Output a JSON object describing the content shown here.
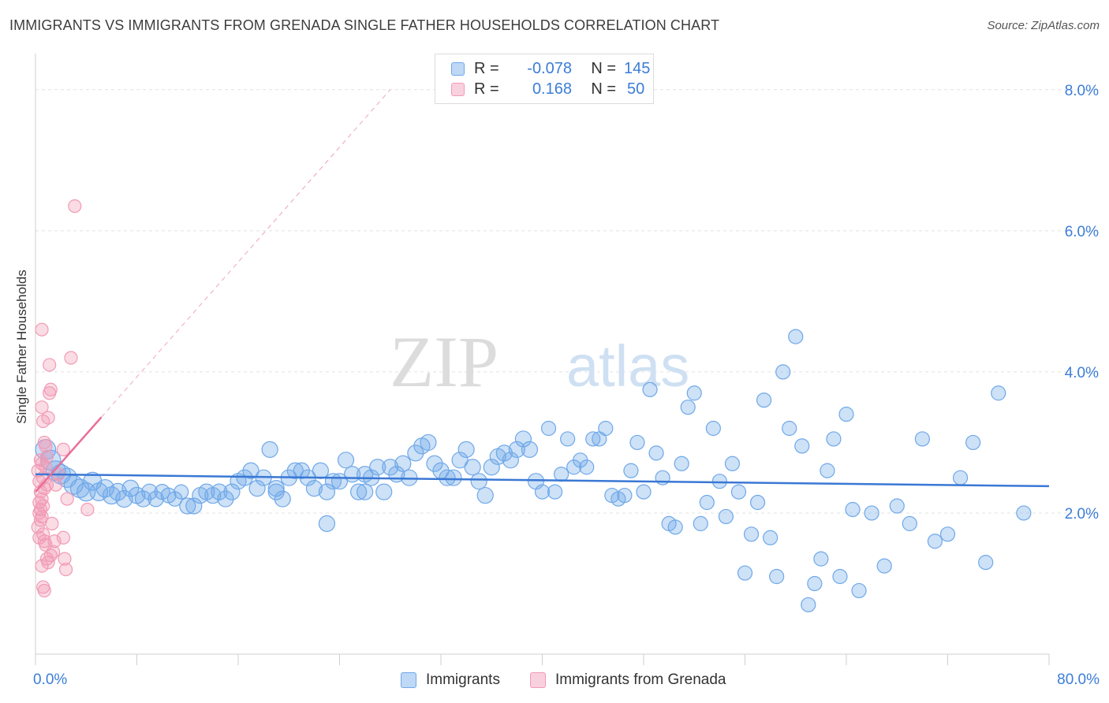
{
  "header": {
    "title": "IMMIGRANTS VS IMMIGRANTS FROM GRENADA SINGLE FATHER HOUSEHOLDS CORRELATION CHART",
    "source": "Source: ZipAtlas.com"
  },
  "watermark": {
    "zip": "ZIP",
    "atlas": "atlas"
  },
  "legend_top": {
    "rows": [
      {
        "r_label": "R =",
        "r_value": "-0.078",
        "n_label": "N =",
        "n_value": "145",
        "color": "#6fa8e8"
      },
      {
        "r_label": "R =",
        "r_value": "0.168",
        "n_label": "N =",
        "n_value": "50",
        "color": "#f29ab5"
      }
    ]
  },
  "legend_bottom": {
    "items": [
      {
        "label": "Immigrants",
        "color": "#6fa8e8"
      },
      {
        "label": "Immigrants from Grenada",
        "color": "#f29ab5"
      }
    ]
  },
  "chart_data": {
    "type": "scatter",
    "title": "IMMIGRANTS VS IMMIGRANTS FROM GRENADA SINGLE FATHER HOUSEHOLDS CORRELATION CHART",
    "xlabel": "",
    "ylabel": "Single Father Households",
    "xlim": [
      0,
      80
    ],
    "ylim": [
      0,
      8.4
    ],
    "x_tick_labels": [
      "0.0%",
      "80.0%"
    ],
    "y_ticks": [
      2,
      4,
      6,
      8
    ],
    "y_tick_labels": [
      "2.0%",
      "4.0%",
      "6.0%",
      "8.0%"
    ],
    "grid": true,
    "legend_position": "top-center",
    "series": [
      {
        "name": "Immigrants",
        "color": "#6fa8e8",
        "trend": {
          "x": [
            0,
            80
          ],
          "y": [
            2.55,
            2.38
          ]
        },
        "points": [
          [
            0.8,
            2.9
          ],
          [
            1.2,
            2.75
          ],
          [
            1.6,
            2.6
          ],
          [
            2.0,
            2.55
          ],
          [
            2.5,
            2.5
          ],
          [
            3.0,
            2.4
          ],
          [
            3.5,
            2.35
          ],
          [
            4.0,
            2.3
          ],
          [
            4.5,
            2.45
          ],
          [
            5.0,
            2.3
          ],
          [
            5.5,
            2.35
          ],
          [
            6.0,
            2.25
          ],
          [
            6.5,
            2.3
          ],
          [
            7.0,
            2.2
          ],
          [
            7.5,
            2.35
          ],
          [
            8.0,
            2.25
          ],
          [
            8.5,
            2.2
          ],
          [
            9.0,
            2.3
          ],
          [
            9.5,
            2.2
          ],
          [
            10.0,
            2.3
          ],
          [
            10.5,
            2.25
          ],
          [
            11.0,
            2.2
          ],
          [
            11.5,
            2.3
          ],
          [
            12.0,
            2.1
          ],
          [
            12.5,
            2.1
          ],
          [
            13.0,
            2.25
          ],
          [
            13.5,
            2.3
          ],
          [
            14.0,
            2.25
          ],
          [
            14.5,
            2.3
          ],
          [
            15.0,
            2.2
          ],
          [
            15.5,
            2.3
          ],
          [
            16.0,
            2.45
          ],
          [
            16.5,
            2.5
          ],
          [
            17.0,
            2.6
          ],
          [
            17.5,
            2.35
          ],
          [
            18.0,
            2.5
          ],
          [
            18.5,
            2.9
          ],
          [
            19.0,
            2.35
          ],
          [
            19.5,
            2.2
          ],
          [
            20.0,
            2.5
          ],
          [
            20.5,
            2.6
          ],
          [
            21.0,
            2.6
          ],
          [
            21.5,
            2.5
          ],
          [
            22.0,
            2.35
          ],
          [
            22.5,
            2.6
          ],
          [
            23.0,
            2.3
          ],
          [
            23.5,
            2.45
          ],
          [
            24.0,
            2.45
          ],
          [
            24.5,
            2.75
          ],
          [
            25.0,
            2.55
          ],
          [
            25.5,
            2.3
          ],
          [
            26.0,
            2.55
          ],
          [
            26.5,
            2.5
          ],
          [
            27.0,
            2.65
          ],
          [
            27.5,
            2.3
          ],
          [
            28.0,
            2.65
          ],
          [
            28.5,
            2.55
          ],
          [
            29.0,
            2.7
          ],
          [
            29.5,
            2.5
          ],
          [
            30.0,
            2.85
          ],
          [
            30.5,
            2.95
          ],
          [
            31.0,
            3.0
          ],
          [
            31.5,
            2.7
          ],
          [
            32.0,
            2.6
          ],
          [
            32.5,
            2.5
          ],
          [
            33.0,
            2.5
          ],
          [
            33.5,
            2.75
          ],
          [
            34.0,
            2.9
          ],
          [
            34.5,
            2.65
          ],
          [
            35.0,
            2.45
          ],
          [
            35.5,
            2.25
          ],
          [
            36.0,
            2.65
          ],
          [
            36.5,
            2.8
          ],
          [
            37.0,
            2.85
          ],
          [
            37.5,
            2.75
          ],
          [
            38.0,
            2.9
          ],
          [
            38.5,
            3.05
          ],
          [
            39.0,
            2.9
          ],
          [
            39.5,
            2.45
          ],
          [
            40.0,
            2.3
          ],
          [
            40.5,
            3.2
          ],
          [
            41.0,
            2.3
          ],
          [
            41.5,
            2.55
          ],
          [
            42.0,
            3.05
          ],
          [
            42.5,
            2.65
          ],
          [
            43.0,
            2.75
          ],
          [
            43.5,
            2.65
          ],
          [
            44.0,
            3.05
          ],
          [
            44.5,
            3.05
          ],
          [
            45.0,
            3.2
          ],
          [
            45.5,
            2.25
          ],
          [
            46.0,
            2.2
          ],
          [
            46.5,
            2.25
          ],
          [
            47.0,
            2.6
          ],
          [
            47.5,
            3.0
          ],
          [
            48.0,
            2.3
          ],
          [
            48.5,
            3.75
          ],
          [
            49.0,
            2.85
          ],
          [
            49.5,
            2.5
          ],
          [
            50.0,
            1.85
          ],
          [
            50.5,
            1.8
          ],
          [
            51.0,
            2.7
          ],
          [
            51.5,
            3.5
          ],
          [
            52.0,
            3.7
          ],
          [
            52.5,
            1.85
          ],
          [
            53.0,
            2.15
          ],
          [
            53.5,
            3.2
          ],
          [
            54.0,
            2.45
          ],
          [
            54.5,
            1.95
          ],
          [
            55.0,
            2.7
          ],
          [
            55.5,
            2.3
          ],
          [
            56.0,
            1.15
          ],
          [
            56.5,
            1.7
          ],
          [
            57.0,
            2.15
          ],
          [
            57.5,
            3.6
          ],
          [
            58.0,
            1.65
          ],
          [
            58.5,
            1.1
          ],
          [
            59.0,
            4.0
          ],
          [
            59.5,
            3.2
          ],
          [
            60.0,
            4.5
          ],
          [
            60.5,
            2.95
          ],
          [
            61.0,
            0.7
          ],
          [
            61.5,
            1.0
          ],
          [
            62.0,
            1.35
          ],
          [
            62.5,
            2.6
          ],
          [
            63.0,
            3.05
          ],
          [
            63.5,
            1.1
          ],
          [
            64.0,
            3.4
          ],
          [
            64.5,
            2.05
          ],
          [
            65.0,
            0.9
          ],
          [
            66.0,
            2.0
          ],
          [
            67.0,
            1.25
          ],
          [
            68.0,
            2.1
          ],
          [
            69.0,
            1.85
          ],
          [
            70.0,
            3.05
          ],
          [
            71.0,
            1.6
          ],
          [
            72.0,
            1.7
          ],
          [
            73.0,
            2.5
          ],
          [
            74.0,
            3.0
          ],
          [
            75.0,
            1.3
          ],
          [
            76.0,
            3.7
          ],
          [
            78.0,
            2.0
          ],
          [
            23.0,
            1.85
          ],
          [
            19.0,
            2.3
          ],
          [
            26.0,
            2.3
          ]
        ]
      },
      {
        "name": "Immigrants from Grenada",
        "color": "#f29ab5",
        "trend": {
          "x": [
            0,
            28
          ],
          "y": [
            2.3,
            8.0
          ],
          "solid_until_x": 5.2
        },
        "points": [
          [
            0.2,
            2.6
          ],
          [
            0.3,
            2.45
          ],
          [
            0.4,
            2.3
          ],
          [
            0.5,
            2.2
          ],
          [
            0.6,
            2.1
          ],
          [
            0.3,
            2.0
          ],
          [
            0.4,
            1.9
          ],
          [
            0.5,
            2.7
          ],
          [
            0.6,
            2.5
          ],
          [
            0.7,
            2.35
          ],
          [
            0.8,
            2.65
          ],
          [
            0.9,
            2.4
          ],
          [
            0.3,
            2.15
          ],
          [
            0.4,
            2.05
          ],
          [
            0.5,
            1.95
          ],
          [
            0.6,
            1.7
          ],
          [
            0.7,
            1.6
          ],
          [
            0.8,
            1.55
          ],
          [
            0.9,
            1.35
          ],
          [
            1.0,
            1.3
          ],
          [
            0.5,
            1.25
          ],
          [
            0.6,
            0.95
          ],
          [
            0.7,
            0.9
          ],
          [
            0.5,
            3.5
          ],
          [
            0.6,
            3.3
          ],
          [
            0.7,
            3.0
          ],
          [
            0.8,
            2.95
          ],
          [
            0.9,
            2.8
          ],
          [
            1.0,
            3.35
          ],
          [
            1.1,
            3.7
          ],
          [
            1.2,
            3.75
          ],
          [
            1.1,
            4.1
          ],
          [
            0.5,
            4.6
          ],
          [
            2.8,
            4.2
          ],
          [
            3.1,
            6.35
          ],
          [
            2.2,
            2.9
          ],
          [
            2.5,
            2.2
          ],
          [
            4.1,
            2.05
          ],
          [
            1.5,
            1.6
          ],
          [
            1.4,
            1.45
          ],
          [
            2.2,
            1.65
          ],
          [
            2.3,
            1.35
          ],
          [
            2.4,
            1.2
          ],
          [
            1.3,
            1.85
          ],
          [
            1.6,
            2.4
          ],
          [
            0.2,
            1.8
          ],
          [
            0.3,
            1.65
          ],
          [
            0.4,
            2.75
          ],
          [
            1.8,
            2.55
          ],
          [
            1.2,
            1.4
          ]
        ]
      }
    ]
  }
}
